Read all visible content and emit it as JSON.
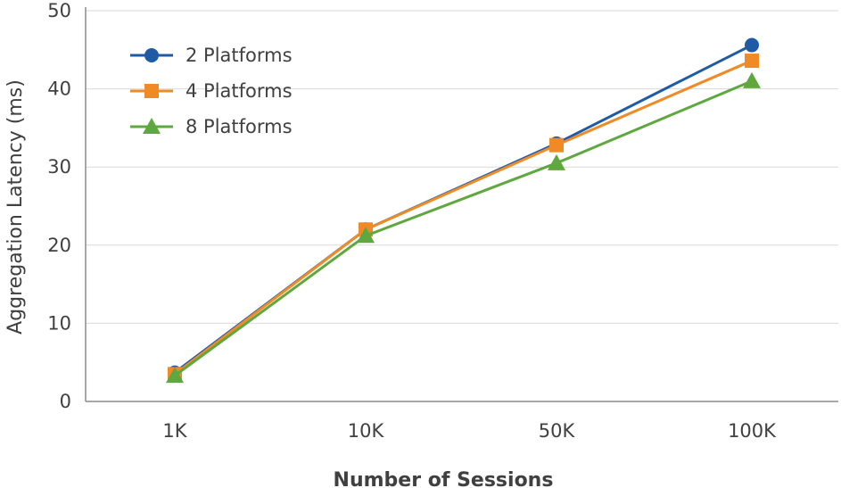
{
  "chart_data": {
    "type": "line",
    "categories": [
      "1K",
      "10K",
      "50K",
      "100K"
    ],
    "series": [
      {
        "name": "2 Platforms",
        "marker": "circle",
        "color": "#1f5aa6",
        "values": [
          3.7,
          22.0,
          33.0,
          45.6
        ]
      },
      {
        "name": "4 Platforms",
        "marker": "square",
        "color": "#f08a24",
        "values": [
          3.5,
          22.0,
          32.8,
          43.6
        ]
      },
      {
        "name": "8 Platforms",
        "marker": "triangle",
        "color": "#5fa83f",
        "values": [
          3.3,
          21.2,
          30.5,
          41.0
        ]
      }
    ],
    "xlabel": "Number of Sessions",
    "ylabel": "Aggregation Latency (ms)",
    "ylim": [
      0,
      50
    ],
    "yticks": [
      0,
      10,
      20,
      30,
      40,
      50
    ],
    "grid": true,
    "legend": "top-left"
  }
}
